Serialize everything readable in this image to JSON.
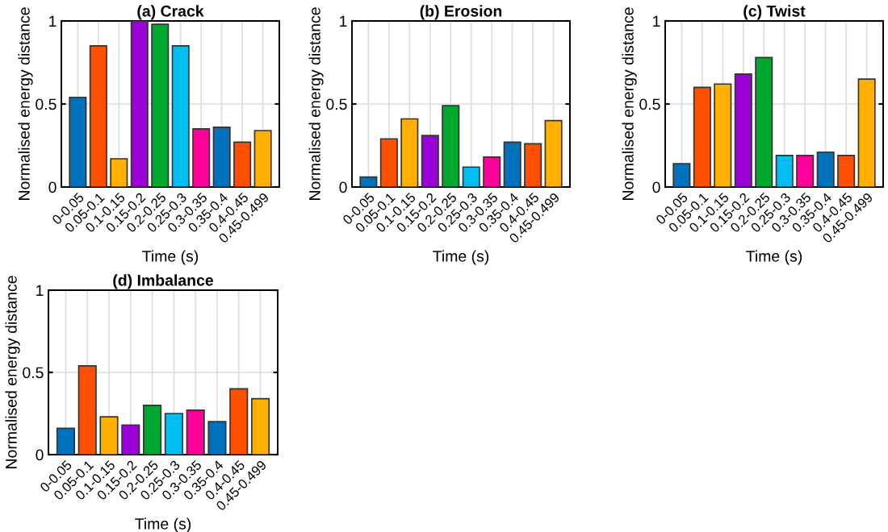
{
  "chart_data": [
    {
      "type": "bar",
      "title": "(a) Crack",
      "xlabel": "Time (s)",
      "ylabel": "Normalised energy distance",
      "categories": [
        "0-0.05",
        "0.05-0.1",
        "0.1-0.15",
        "0.15-0.2",
        "0.2-0.25",
        "0.25-0.3",
        "0.3-0.35",
        "0.35-0.4",
        "0.4-0.45",
        "0.45-0.499"
      ],
      "values": [
        0.54,
        0.85,
        0.17,
        1.0,
        0.98,
        0.85,
        0.35,
        0.36,
        0.27,
        0.34
      ],
      "colors": [
        "#0072bd",
        "#ff4f00",
        "#ffb000",
        "#9b00d6",
        "#00a82d",
        "#00bff0",
        "#ff0099",
        "#0072bd",
        "#ff4f00",
        "#ffb000"
      ],
      "ylim": [
        0,
        1
      ],
      "yticks": [
        0,
        0.5,
        1
      ],
      "grid": true
    },
    {
      "type": "bar",
      "title": "(b) Erosion",
      "xlabel": "Time (s)",
      "ylabel": "Normalised energy distance",
      "categories": [
        "0-0.05",
        "0.05-0.1",
        "0.1-0.15",
        "0.15-0.2",
        "0.2-0.25",
        "0.25-0.3",
        "0.3-0.35",
        "0.35-0.4",
        "0.4-0.45",
        "0.45-0.499"
      ],
      "values": [
        0.06,
        0.29,
        0.41,
        0.31,
        0.49,
        0.12,
        0.18,
        0.27,
        0.26,
        0.4
      ],
      "colors": [
        "#0072bd",
        "#ff4f00",
        "#ffb000",
        "#9b00d6",
        "#00a82d",
        "#00bff0",
        "#ff0099",
        "#0072bd",
        "#ff4f00",
        "#ffb000"
      ],
      "ylim": [
        0,
        1
      ],
      "yticks": [
        0,
        0.5,
        1
      ],
      "grid": true
    },
    {
      "type": "bar",
      "title": "(c) Twist",
      "xlabel": "Time (s)",
      "ylabel": "Normalised energy distance",
      "categories": [
        "0-0.05",
        "0.05-0.1",
        "0.1-0.15",
        "0.15-0.2",
        "0.2-0.25",
        "0.25-0.3",
        "0.3-0.35",
        "0.35-0.4",
        "0.4-0.45",
        "0.45-0.499"
      ],
      "values": [
        0.14,
        0.6,
        0.62,
        0.68,
        0.78,
        0.19,
        0.19,
        0.21,
        0.19,
        0.65
      ],
      "colors": [
        "#0072bd",
        "#ff4f00",
        "#ffb000",
        "#9b00d6",
        "#00a82d",
        "#00bff0",
        "#ff0099",
        "#0072bd",
        "#ff4f00",
        "#ffb000"
      ],
      "ylim": [
        0,
        1
      ],
      "yticks": [
        0,
        0.5,
        1
      ],
      "grid": true
    },
    {
      "type": "bar",
      "title": "(d) Imbalance",
      "xlabel": "Time (s)",
      "ylabel": "Normalised energy distance",
      "categories": [
        "0-0.05",
        "0.05-0.1",
        "0.1-0.15",
        "0.15-0.2",
        "0.2-0.25",
        "0.25-0.3",
        "0.3-0.35",
        "0.35-0.4",
        "0.4-0.45",
        "0.45-0.499"
      ],
      "values": [
        0.16,
        0.54,
        0.23,
        0.18,
        0.3,
        0.25,
        0.27,
        0.2,
        0.4,
        0.34
      ],
      "colors": [
        "#0072bd",
        "#ff4f00",
        "#ffb000",
        "#9b00d6",
        "#00a82d",
        "#00bff0",
        "#ff0099",
        "#0072bd",
        "#ff4f00",
        "#ffb000"
      ],
      "ylim": [
        0,
        1
      ],
      "yticks": [
        0,
        0.5,
        1
      ],
      "grid": true
    }
  ]
}
